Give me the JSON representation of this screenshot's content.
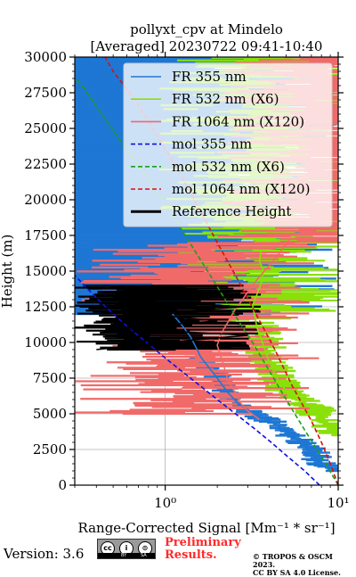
{
  "chart_data": {
    "type": "line",
    "title": "pollyxt_cpv at Mindelo",
    "subtitle": "[Averaged] 20230722 09:41-10:40",
    "xlabel": "Range-Corrected Signal [Mm⁻¹ * sr⁻¹]",
    "ylabel": "Height (m)",
    "xscale": "log",
    "xlim": [
      0.3,
      10
    ],
    "ylim": [
      0,
      30000
    ],
    "x_ticks": [
      1,
      10
    ],
    "x_tick_labels": [
      "10⁰",
      "10¹"
    ],
    "y_ticks": [
      0,
      2500,
      5000,
      7500,
      10000,
      12500,
      15000,
      17500,
      20000,
      22500,
      25000,
      27500,
      30000
    ],
    "y_tick_labels": [
      "0",
      "2500",
      "5000",
      "7500",
      "10000",
      "12500",
      "15000",
      "17500",
      "20000",
      "22500",
      "25000",
      "27500",
      "30000"
    ],
    "grid": true,
    "legend_position": "top-right",
    "series": [
      {
        "name": "FR 355 nm",
        "style": "solid",
        "color": "#1f77d4",
        "points": [
          [
            10,
            1000
          ],
          [
            8.5,
            1300
          ],
          [
            7.6,
            1800
          ],
          [
            7.0,
            2600
          ],
          [
            5.5,
            3400
          ],
          [
            4.3,
            4300
          ],
          [
            3.3,
            5000
          ],
          [
            2.9,
            5400
          ],
          [
            2.6,
            5800
          ],
          [
            2.3,
            6500
          ],
          [
            2.0,
            7500
          ],
          [
            1.8,
            8200
          ],
          [
            1.6,
            9000
          ],
          [
            1.5,
            9700
          ],
          [
            1.4,
            10400
          ],
          [
            1.25,
            11200
          ],
          [
            1.1,
            12000
          ]
        ]
      },
      {
        "name": "FR 532 nm (X6)",
        "style": "solid",
        "color": "#8ae00a",
        "points": [
          [
            10,
            3500
          ],
          [
            9.2,
            4000
          ],
          [
            8.0,
            4700
          ],
          [
            7.2,
            5300
          ],
          [
            6.2,
            5800
          ],
          [
            5.3,
            6300
          ],
          [
            4.7,
            7000
          ],
          [
            4.3,
            7800
          ],
          [
            4.0,
            8600
          ],
          [
            3.8,
            9400
          ],
          [
            3.6,
            10200
          ],
          [
            3.4,
            11000
          ],
          [
            3.3,
            11800
          ],
          [
            3.2,
            12600
          ],
          [
            3.4,
            13400
          ],
          [
            3.6,
            14200
          ],
          [
            3.7,
            15000
          ],
          [
            3.5,
            15700
          ],
          [
            3.6,
            16500
          ]
        ]
      },
      {
        "name": "FR 1064 nm (X120)",
        "style": "solid",
        "color": "#f06a6a",
        "points": [
          [
            3.5,
            4600
          ],
          [
            3.0,
            5200
          ],
          [
            2.7,
            5800
          ],
          [
            2.5,
            6600
          ],
          [
            2.3,
            7400
          ],
          [
            2.2,
            8200
          ],
          [
            2.1,
            9000
          ],
          [
            2.0,
            9800
          ],
          [
            2.1,
            10600
          ],
          [
            2.3,
            11400
          ],
          [
            2.5,
            12200
          ],
          [
            2.8,
            13000
          ],
          [
            3.1,
            13800
          ],
          [
            3.5,
            14600
          ],
          [
            4.0,
            15400
          ],
          [
            4.6,
            16300
          ],
          [
            5.2,
            17200
          ]
        ]
      },
      {
        "name": "mol 355 nm",
        "style": "dashed",
        "color": "#1010e0",
        "points": [
          [
            7.8,
            0
          ],
          [
            6.4,
            1000
          ],
          [
            5.1,
            2000
          ],
          [
            4.1,
            3000
          ],
          [
            3.25,
            4000
          ],
          [
            2.55,
            5000
          ],
          [
            2.0,
            6000
          ],
          [
            1.58,
            7000
          ],
          [
            1.24,
            8000
          ],
          [
            0.98,
            9000
          ],
          [
            0.78,
            10000
          ],
          [
            0.62,
            11000
          ],
          [
            0.5,
            12000
          ],
          [
            0.41,
            13000
          ],
          [
            0.34,
            14000
          ],
          [
            0.3,
            14700
          ]
        ]
      },
      {
        "name": "mol 532 nm (X6)",
        "style": "dashed",
        "color": "#1aa01a",
        "points": [
          [
            10,
            0
          ],
          [
            8.0,
            2000
          ],
          [
            6.3,
            4000
          ],
          [
            5.0,
            6000
          ],
          [
            4.0,
            8000
          ],
          [
            3.2,
            10000
          ],
          [
            2.5,
            12000
          ],
          [
            1.98,
            14000
          ],
          [
            1.56,
            16000
          ],
          [
            1.23,
            18000
          ],
          [
            0.96,
            20000
          ],
          [
            0.74,
            22000
          ],
          [
            0.56,
            24000
          ],
          [
            0.43,
            26000
          ],
          [
            0.34,
            27800
          ],
          [
            0.3,
            28600
          ]
        ]
      },
      {
        "name": "mol 1064 nm (X120)",
        "style": "dashed",
        "color": "#d81010",
        "points": [
          [
            10,
            0
          ],
          [
            9.0,
            1500
          ],
          [
            8.0,
            3000
          ],
          [
            7.0,
            4500
          ],
          [
            5.4,
            7000
          ],
          [
            4.3,
            9500
          ],
          [
            3.35,
            12000
          ],
          [
            2.6,
            14500
          ],
          [
            2.0,
            17000
          ],
          [
            1.55,
            19500
          ],
          [
            1.2,
            22000
          ],
          [
            0.9,
            24500
          ],
          [
            0.67,
            27000
          ],
          [
            0.5,
            29000
          ],
          [
            0.45,
            30000
          ]
        ]
      },
      {
        "name": "Reference Height",
        "style": "solid",
        "color": "#000000",
        "points": [
          [
            0.4,
            9500
          ],
          [
            1.0,
            10000
          ],
          [
            3.0,
            10500
          ],
          [
            0.5,
            11000
          ],
          [
            2.0,
            11500
          ],
          [
            0.8,
            12000
          ],
          [
            2.8,
            12500
          ],
          [
            0.6,
            13000
          ],
          [
            1.6,
            13500
          ],
          [
            0.45,
            14000
          ]
        ]
      }
    ]
  },
  "footer": {
    "version": "Version: 3.6",
    "cc_marks": [
      "cc",
      "i",
      "⊙"
    ],
    "cc_strip_left": "BY",
    "cc_strip_right": "SA",
    "preliminary_line1": "Preliminary",
    "preliminary_line2": "Results.",
    "copyright_line1": "© TROPOS & OSCM 2023.",
    "copyright_line2": "CC BY SA 4.0 License."
  },
  "colors": {
    "fr355_noise": "#1f77d4",
    "fr532_noise": "#8ae00a",
    "fr1064_noise": "#f06a6a",
    "reference_noise": "#000000",
    "legend_bg": "#ffffff",
    "prelim_text": "#ff2a2a"
  }
}
